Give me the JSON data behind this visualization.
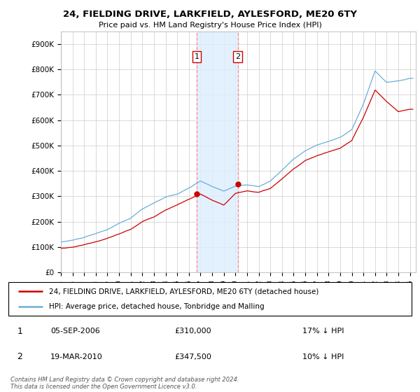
{
  "title": "24, FIELDING DRIVE, LARKFIELD, AYLESFORD, ME20 6TY",
  "subtitle": "Price paid vs. HM Land Registry's House Price Index (HPI)",
  "ylabel_ticks": [
    "£0",
    "£100K",
    "£200K",
    "£300K",
    "£400K",
    "£500K",
    "£600K",
    "£700K",
    "£800K",
    "£900K"
  ],
  "ytick_values": [
    0,
    100000,
    200000,
    300000,
    400000,
    500000,
    600000,
    700000,
    800000,
    900000
  ],
  "ylim": [
    0,
    950000
  ],
  "xlim_start": 1995.0,
  "xlim_end": 2025.5,
  "xticks": [
    1995,
    1996,
    1997,
    1998,
    1999,
    2000,
    2001,
    2002,
    2003,
    2004,
    2005,
    2006,
    2007,
    2008,
    2009,
    2010,
    2011,
    2012,
    2013,
    2014,
    2015,
    2016,
    2017,
    2018,
    2019,
    2020,
    2021,
    2022,
    2023,
    2024,
    2025
  ],
  "hpi_color": "#6baed6",
  "price_color": "#cc0000",
  "transaction1_x": 2006.68,
  "transaction1_y": 310000,
  "transaction2_x": 2010.21,
  "transaction2_y": 347500,
  "shade_x1": 2006.68,
  "shade_x2": 2010.21,
  "legend_line1": "24, FIELDING DRIVE, LARKFIELD, AYLESFORD, ME20 6TY (detached house)",
  "legend_line2": "HPI: Average price, detached house, Tonbridge and Malling",
  "table_row1_num": "1",
  "table_row1_date": "05-SEP-2006",
  "table_row1_price": "£310,000",
  "table_row1_hpi": "17% ↓ HPI",
  "table_row2_num": "2",
  "table_row2_date": "19-MAR-2010",
  "table_row2_price": "£347,500",
  "table_row2_hpi": "10% ↓ HPI",
  "footer": "Contains HM Land Registry data © Crown copyright and database right 2024.\nThis data is licensed under the Open Government Licence v3.0.",
  "grid_color": "#cccccc"
}
